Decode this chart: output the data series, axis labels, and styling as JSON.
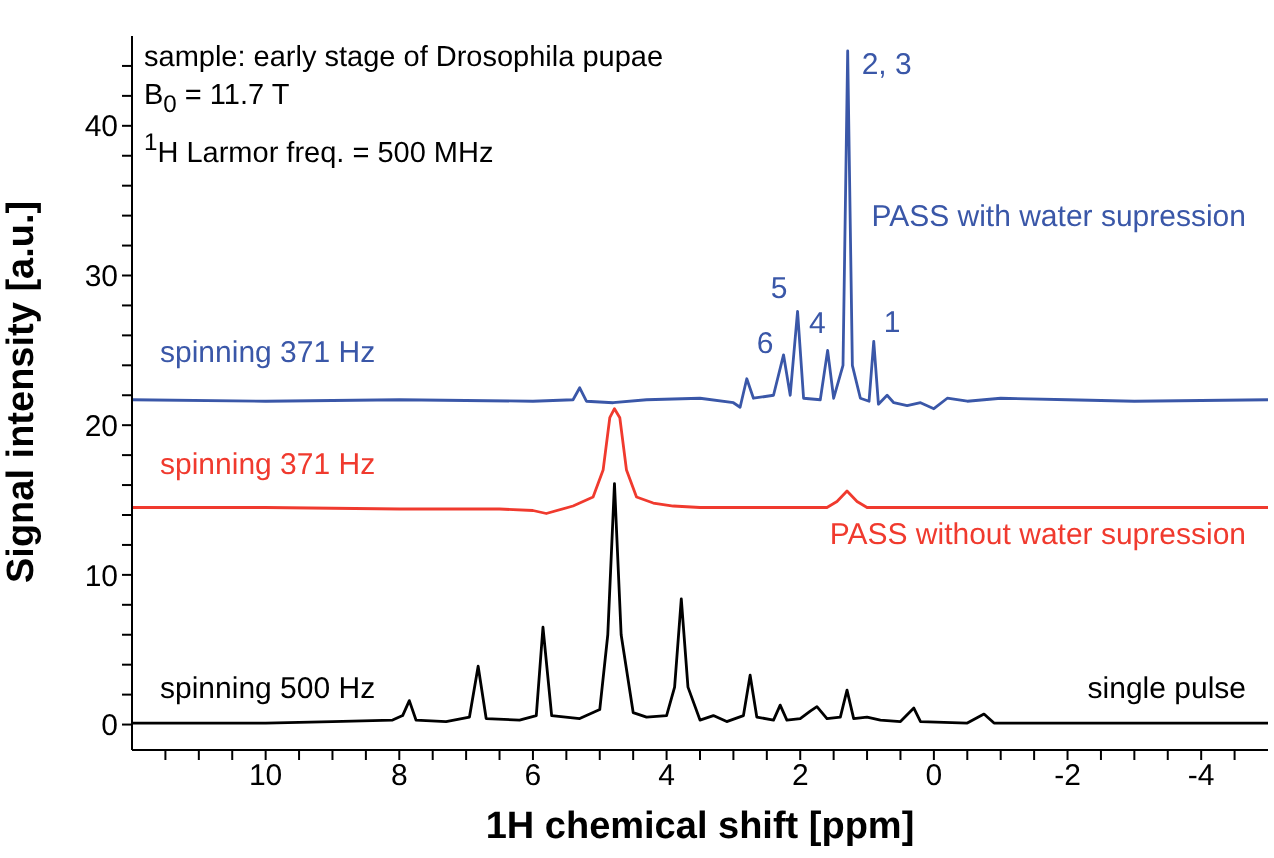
{
  "chart_data": {
    "type": "line",
    "xlabel": "1H chemical shift [ppm]",
    "ylabel": "Signal intensity [a.u.]",
    "xlim": [
      12,
      -5
    ],
    "ylim": [
      -1.7,
      46
    ],
    "xticks": [
      {
        "value": 11.5,
        "label": null
      },
      {
        "value": 11,
        "label": null
      },
      {
        "value": 10.5,
        "label": null
      },
      10,
      {
        "value": 9.5,
        "label": null
      },
      {
        "value": 9,
        "label": null
      },
      {
        "value": 8.5,
        "label": null
      },
      8,
      {
        "value": 7.5,
        "label": null
      },
      {
        "value": 7,
        "label": null
      },
      {
        "value": 6.5,
        "label": null
      },
      6,
      {
        "value": 5.5,
        "label": null
      },
      {
        "value": 5,
        "label": null
      },
      {
        "value": 4.5,
        "label": null
      },
      4,
      {
        "value": 3.5,
        "label": null
      },
      {
        "value": 3,
        "label": null
      },
      {
        "value": 2.5,
        "label": null
      },
      2,
      {
        "value": 1.5,
        "label": null
      },
      {
        "value": 1,
        "label": null
      },
      {
        "value": 0.5,
        "label": null
      },
      0,
      {
        "value": -0.5,
        "label": null
      },
      {
        "value": -1,
        "label": null
      },
      {
        "value": -1.5,
        "label": null
      },
      -2,
      {
        "value": -2.5,
        "label": null
      },
      {
        "value": -3,
        "label": null
      },
      {
        "value": -3.5,
        "label": null
      },
      -4,
      {
        "value": -4.5,
        "label": null
      }
    ],
    "yticks": [
      0,
      {
        "value": 2,
        "label": null
      },
      {
        "value": 4,
        "label": null
      },
      {
        "value": 6,
        "label": null
      },
      {
        "value": 8,
        "label": null
      },
      10,
      {
        "value": 12,
        "label": null
      },
      {
        "value": 14,
        "label": null
      },
      {
        "value": 16,
        "label": null
      },
      {
        "value": 18,
        "label": null
      },
      20,
      {
        "value": 22,
        "label": null
      },
      {
        "value": 24,
        "label": null
      },
      {
        "value": 26,
        "label": null
      },
      {
        "value": 28,
        "label": null
      },
      30,
      {
        "value": 32,
        "label": null
      },
      {
        "value": 34,
        "label": null
      },
      {
        "value": 36,
        "label": null
      },
      {
        "value": 38,
        "label": null
      },
      40,
      {
        "value": 42,
        "label": null
      },
      {
        "value": 44,
        "label": null
      }
    ],
    "grid": false,
    "marker": "none",
    "line_style": "solid",
    "series": [
      {
        "color": "#3a57a8",
        "x": [
          12,
          10,
          8,
          6,
          5.4,
          5.3,
          5.2,
          4.8,
          4.3,
          3.5,
          3.0,
          2.9,
          2.8,
          2.7,
          2.4,
          2.25,
          2.15,
          2.04,
          1.95,
          1.7,
          1.59,
          1.5,
          1.36,
          1.29,
          1.22,
          1.1,
          0.97,
          0.9,
          0.83,
          0.7,
          0.6,
          0.4,
          0.2,
          0,
          -0.2,
          -0.5,
          -1,
          -2,
          -3,
          -5
        ],
        "values": [
          21.7,
          21.6,
          21.7,
          21.6,
          21.7,
          22.5,
          21.6,
          21.5,
          21.7,
          21.8,
          21.5,
          21.2,
          23.1,
          21.8,
          22,
          24.7,
          22,
          27.6,
          21.8,
          21.7,
          25,
          21.8,
          24,
          45,
          24,
          21.8,
          21.6,
          25.6,
          21.4,
          22,
          21.5,
          21.3,
          21.5,
          21.1,
          21.8,
          21.6,
          21.8,
          21.7,
          21.6,
          21.7
        ]
      },
      {
        "color": "#f03a2e",
        "x": [
          12,
          10,
          8,
          6.5,
          6,
          5.8,
          5.4,
          5.1,
          4.95,
          4.85,
          4.78,
          4.7,
          4.6,
          4.45,
          4.2,
          3.9,
          3.5,
          2.5,
          1.6,
          1.45,
          1.3,
          1.15,
          1,
          -1,
          -5
        ],
        "values": [
          14.5,
          14.5,
          14.4,
          14.4,
          14.3,
          14.1,
          14.6,
          15.2,
          17,
          20.5,
          21.1,
          20.5,
          17,
          15.2,
          14.8,
          14.6,
          14.5,
          14.5,
          14.5,
          14.9,
          15.6,
          14.9,
          14.5,
          14.5,
          14.5
        ]
      },
      {
        "color": "#000000",
        "x": [
          12,
          10,
          9,
          8.1,
          7.95,
          7.85,
          7.75,
          7.3,
          6.95,
          6.82,
          6.7,
          6.2,
          5.95,
          5.85,
          5.72,
          5.3,
          5,
          4.88,
          4.78,
          4.68,
          4.5,
          4.3,
          4,
          3.88,
          3.78,
          3.68,
          3.5,
          3.3,
          3.1,
          2.85,
          2.75,
          2.65,
          2.4,
          2.3,
          2.2,
          2,
          1.85,
          1.75,
          1.6,
          1.4,
          1.3,
          1.2,
          1,
          0.8,
          0.5,
          0.3,
          0.2,
          -0.5,
          -0.75,
          -0.9,
          -2,
          -5
        ],
        "values": [
          0.1,
          0.1,
          0.2,
          0.3,
          0.6,
          1.6,
          0.3,
          0.2,
          0.5,
          3.9,
          0.4,
          0.3,
          0.6,
          6.5,
          0.6,
          0.4,
          1,
          6,
          16.1,
          6,
          0.8,
          0.5,
          0.6,
          2.5,
          8.4,
          2.5,
          0.3,
          0.6,
          0.2,
          0.6,
          3.3,
          0.5,
          0.3,
          1.3,
          0.3,
          0.4,
          0.9,
          1.2,
          0.4,
          0.5,
          2.3,
          0.4,
          0.5,
          0.3,
          0.2,
          1.1,
          0.2,
          0.1,
          0.7,
          0.1,
          0.1,
          0.1
        ]
      }
    ],
    "annotations": [
      "sample: early stage of Drosophila pupae",
      "B$_{0}$ = 11.7 T",
      "$^{1}$H Larmor freq. = 500 MHz",
      {
        "text": "2, 3",
        "x": 1.29,
        "y": 45
      },
      {
        "text": "5",
        "x": 2.04,
        "y": 27.6
      },
      {
        "text": "4",
        "x": 1.59,
        "y": 25
      },
      {
        "text": "6",
        "x": 2.25,
        "y": 24.7
      },
      {
        "text": "1",
        "x": 0.9,
        "y": 25.6
      },
      "PASS with water supression",
      "spinning 371 Hz",
      "spinning 371 Hz",
      "PASS without water supression",
      "spinning 500 Hz",
      "single pulse"
    ]
  }
}
